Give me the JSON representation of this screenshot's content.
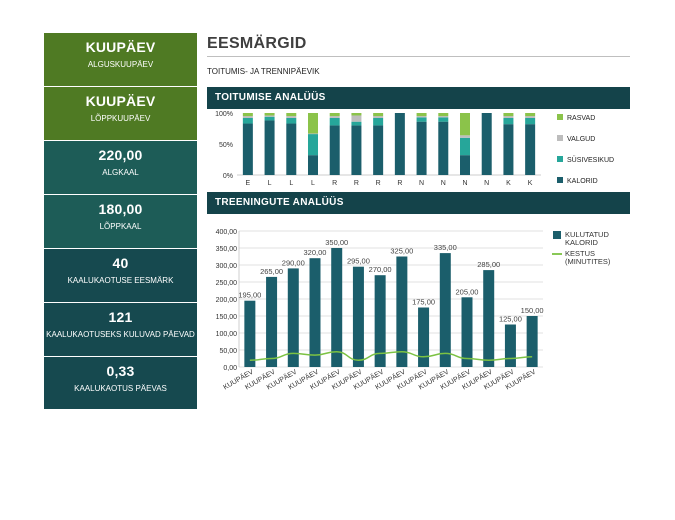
{
  "tiles": [
    {
      "big": "KUUPÄEV",
      "small": "ALGUSKUUPÄEV"
    },
    {
      "big": "KUUPÄEV",
      "small": "LÕPPKUUPÄEV"
    },
    {
      "big": "220,00",
      "small": "ALGKAAL"
    },
    {
      "big": "180,00",
      "small": "LÕPPKAAL"
    },
    {
      "big": "40",
      "small": "KAALUKAOTUSE EESMÄRK"
    },
    {
      "big": "121",
      "small": "KAALUKAOTUSEKS KULUVAD PÄEVAD"
    },
    {
      "big": "0,33",
      "small": "KAALUKAOTUS PÄEVAS"
    }
  ],
  "header": {
    "title": "EESMÄRGID",
    "subtitle": "TOITUMIS- JA TRENNIPÄEVIK"
  },
  "sections": {
    "nutrition": "TOITUMISE ANALÜÜS",
    "training": "TREENINGUTE ANALÜÜS"
  },
  "colors": {
    "green_tile": "#4f7a23",
    "teal_tile": "#1d5c57",
    "dark_tile": "#16494f",
    "band": "#14434a",
    "kalorid": "#1b5e6b",
    "susivesikud": "#26a69a",
    "valgud": "#bdbdbd",
    "rasvad": "#8bc34a",
    "kestus": "#7cc243"
  },
  "chart_data": [
    {
      "type": "bar",
      "stacked": true,
      "percent": true,
      "categories": [
        "E",
        "L",
        "L",
        "L",
        "R",
        "R",
        "R",
        "R",
        "N",
        "N",
        "N",
        "N",
        "K",
        "K"
      ],
      "ylim": [
        0,
        100
      ],
      "yticks": [
        "0%",
        "50%",
        "100%"
      ],
      "legend_position": "right",
      "series": [
        {
          "name": "KALORID",
          "values": [
            83,
            88,
            83,
            32,
            80,
            80,
            80,
            100,
            86,
            86,
            32,
            100,
            82,
            82
          ]
        },
        {
          "name": "SÜSIVESIKUD",
          "values": [
            9,
            6,
            9,
            34,
            12,
            6,
            12,
            0,
            7,
            7,
            28,
            0,
            10,
            10
          ]
        },
        {
          "name": "VALGUD",
          "values": [
            3,
            2,
            3,
            1,
            3,
            10,
            3,
            0,
            2,
            2,
            4,
            0,
            3,
            3
          ]
        },
        {
          "name": "RASVAD",
          "values": [
            5,
            4,
            5,
            33,
            5,
            4,
            5,
            0,
            5,
            5,
            36,
            0,
            5,
            5
          ]
        }
      ]
    },
    {
      "type": "bar",
      "categories": [
        "KUUPÄEV",
        "KUUPÄEV",
        "KUUPÄEV",
        "KUUPÄEV",
        "KUUPÄEV",
        "KUUPÄEV",
        "KUUPÄEV",
        "KUUPÄEV",
        "KUUPÄEV",
        "KUUPÄEV",
        "KUUPÄEV",
        "KUUPÄEV",
        "KUUPÄEV",
        "KUUPÄEV"
      ],
      "ylim": [
        0,
        400
      ],
      "yticks": [
        "0,00",
        "50,00",
        "100,00",
        "150,00",
        "200,00",
        "250,00",
        "300,00",
        "350,00",
        "400,00"
      ],
      "grid": true,
      "legend_position": "right",
      "series": [
        {
          "name": "KULUTATUD KALORID",
          "type": "bar",
          "values": [
            195,
            265,
            290,
            320,
            350,
            295,
            270,
            325,
            175,
            335,
            205,
            285,
            125,
            150
          ],
          "labels": [
            "195,00",
            "265,00",
            "290,00",
            "320,00",
            "350,00",
            "295,00",
            "270,00",
            "325,00",
            "175,00",
            "335,00",
            "205,00",
            "285,00",
            "125,00",
            "150,00"
          ]
        },
        {
          "name": "KESTUS (MINUTITES)",
          "type": "line",
          "values": [
            20,
            25,
            40,
            35,
            45,
            20,
            40,
            45,
            30,
            40,
            25,
            20,
            25,
            30
          ]
        }
      ]
    }
  ]
}
